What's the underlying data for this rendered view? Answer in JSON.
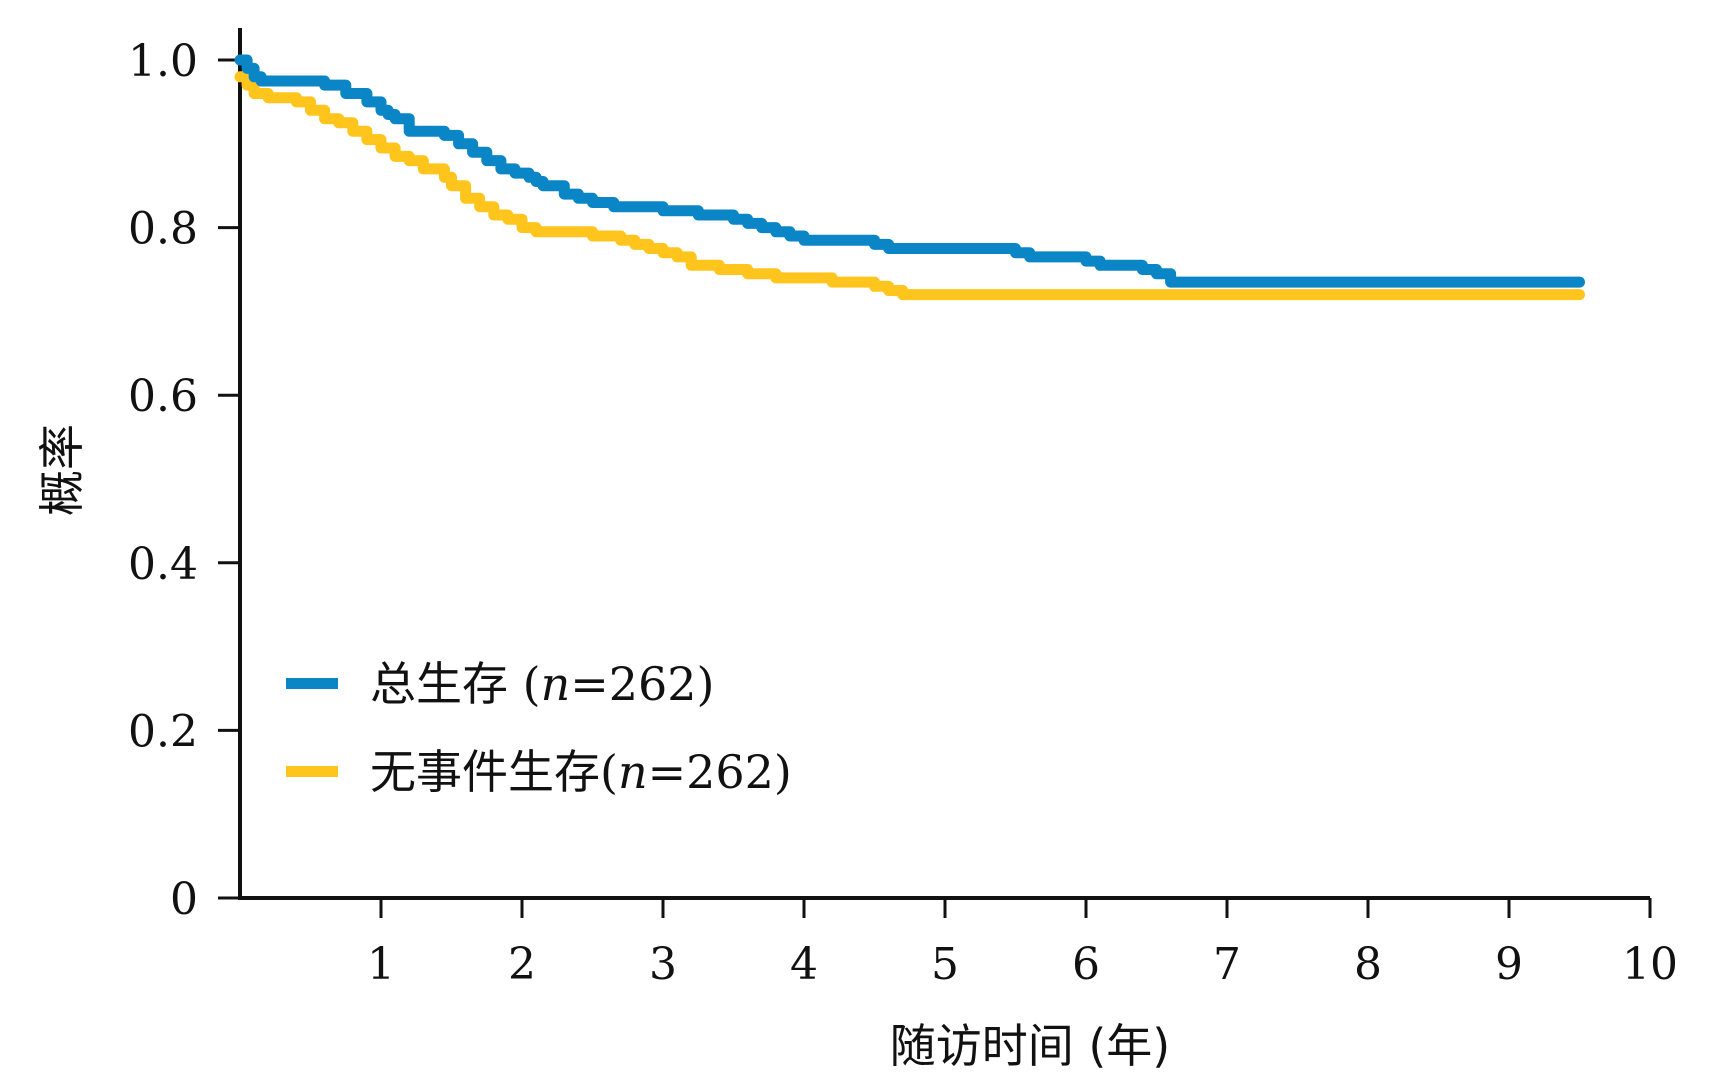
{
  "chart_data": {
    "type": "line",
    "title": "",
    "xlabel": "随访时间 (年)",
    "ylabel": "概率",
    "xlim": [
      0,
      10
    ],
    "ylim": [
      0,
      1.0
    ],
    "x_ticks": [
      "1",
      "2",
      "3",
      "4",
      "5",
      "6",
      "7",
      "8",
      "9",
      "10"
    ],
    "y_ticks": [
      "0",
      "0.2",
      "0.4",
      "0.6",
      "0.8",
      "1.0"
    ],
    "legend_position": "lower-left",
    "series": [
      {
        "name": "总生存 (n=262)",
        "name_prefix": "总生存 (",
        "name_suffix": "=262)",
        "color": "#0A86C6",
        "x": [
          0,
          0.05,
          0.1,
          0.15,
          0.3,
          0.5,
          0.6,
          0.75,
          0.9,
          1.0,
          1.05,
          1.1,
          1.2,
          1.35,
          1.45,
          1.55,
          1.65,
          1.75,
          1.85,
          1.95,
          2.05,
          2.1,
          2.15,
          2.3,
          2.4,
          2.5,
          2.65,
          2.75,
          3.0,
          3.1,
          3.25,
          3.5,
          3.6,
          3.7,
          3.8,
          3.9,
          4.0,
          4.1,
          4.5,
          4.6,
          5.0,
          5.35,
          5.5,
          5.6,
          6.0,
          6.1,
          6.4,
          6.5,
          6.6,
          7.0,
          9.5
        ],
        "y": [
          1.0,
          0.99,
          0.98,
          0.975,
          0.975,
          0.975,
          0.97,
          0.96,
          0.95,
          0.94,
          0.935,
          0.93,
          0.915,
          0.915,
          0.91,
          0.9,
          0.89,
          0.88,
          0.87,
          0.865,
          0.86,
          0.855,
          0.85,
          0.84,
          0.835,
          0.83,
          0.825,
          0.825,
          0.82,
          0.82,
          0.815,
          0.81,
          0.805,
          0.8,
          0.795,
          0.79,
          0.785,
          0.785,
          0.78,
          0.775,
          0.775,
          0.775,
          0.77,
          0.765,
          0.76,
          0.755,
          0.75,
          0.745,
          0.735,
          0.735,
          0.735
        ]
      },
      {
        "name": "无事件生存(n=262)",
        "name_prefix": "无事件生存(",
        "name_suffix": "=262)",
        "color": "#FFC51C",
        "x": [
          0,
          0.05,
          0.1,
          0.2,
          0.4,
          0.5,
          0.6,
          0.7,
          0.8,
          0.9,
          1.0,
          1.1,
          1.2,
          1.3,
          1.45,
          1.5,
          1.6,
          1.7,
          1.8,
          1.9,
          2.0,
          2.1,
          2.3,
          2.5,
          2.7,
          2.8,
          2.9,
          3.0,
          3.1,
          3.2,
          3.4,
          3.5,
          3.6,
          3.7,
          3.8,
          4.0,
          4.2,
          4.5,
          4.6,
          4.7,
          5.0,
          6.0,
          7.0,
          9.5
        ],
        "y": [
          0.98,
          0.97,
          0.96,
          0.955,
          0.95,
          0.94,
          0.93,
          0.925,
          0.915,
          0.905,
          0.895,
          0.885,
          0.88,
          0.87,
          0.86,
          0.85,
          0.835,
          0.825,
          0.815,
          0.81,
          0.8,
          0.795,
          0.795,
          0.79,
          0.785,
          0.78,
          0.775,
          0.77,
          0.765,
          0.755,
          0.75,
          0.75,
          0.745,
          0.745,
          0.74,
          0.74,
          0.735,
          0.73,
          0.725,
          0.72,
          0.72,
          0.72,
          0.72,
          0.72
        ]
      }
    ]
  }
}
